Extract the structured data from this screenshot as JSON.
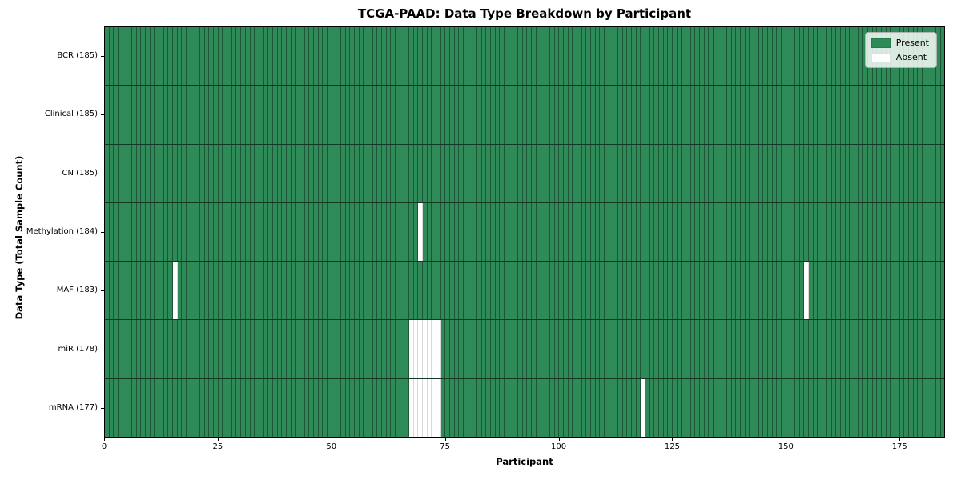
{
  "chart_data": {
    "type": "heatmap",
    "title": "TCGA-PAAD: Data Type Breakdown by Participant",
    "xlabel": "Participant",
    "ylabel": "Data Type (Total Sample Count)",
    "x_range": [
      0,
      185
    ],
    "x_ticks": [
      0,
      25,
      50,
      75,
      100,
      125,
      150,
      175
    ],
    "n_participants": 185,
    "cell_states": [
      "present",
      "absent"
    ],
    "legend": [
      {
        "label": "Present",
        "color": "#2e8b57"
      },
      {
        "label": "Absent",
        "color": "#ffffff"
      }
    ],
    "legend_position": "upper right",
    "rows": [
      {
        "label": "BCR (185)",
        "total": 185,
        "absent_indices": []
      },
      {
        "label": "Clinical (185)",
        "total": 185,
        "absent_indices": []
      },
      {
        "label": "CN (185)",
        "total": 185,
        "absent_indices": []
      },
      {
        "label": "Methylation (184)",
        "total": 184,
        "absent_indices": [
          69
        ]
      },
      {
        "label": "MAF (183)",
        "total": 183,
        "absent_indices": [
          15,
          154
        ]
      },
      {
        "label": "miR (178)",
        "total": 178,
        "absent_indices": [
          67,
          68,
          69,
          70,
          71,
          72,
          73
        ]
      },
      {
        "label": "mRNA (177)",
        "total": 177,
        "absent_indices": [
          67,
          68,
          69,
          70,
          71,
          72,
          73,
          118
        ]
      }
    ]
  },
  "colors": {
    "present": "#2e8b57",
    "absent": "#ffffff",
    "background": "#ffffff"
  }
}
